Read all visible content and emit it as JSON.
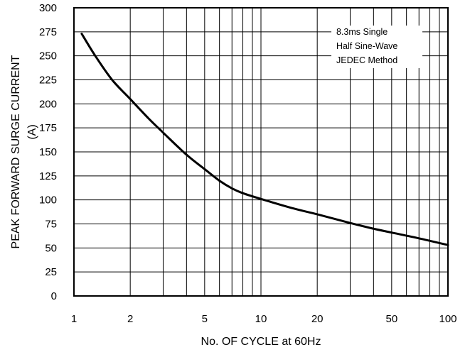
{
  "chart_data": {
    "type": "line",
    "title": "",
    "xlabel": "No. OF CYCLE at 60Hz",
    "ylabel_line1": "PEAK FORWARD SURGE CURRENT",
    "ylabel_line2": "(A)",
    "x_scale": "log",
    "xlim": [
      1,
      100
    ],
    "ylim": [
      0,
      300
    ],
    "grid": true,
    "x_ticks": [
      1,
      2,
      5,
      10,
      20,
      50,
      100
    ],
    "x_tick_labels": [
      "1",
      "2",
      "5",
      "10",
      "20",
      "50",
      "100"
    ],
    "y_ticks": [
      0,
      25,
      50,
      75,
      100,
      125,
      150,
      175,
      200,
      225,
      250,
      275,
      300
    ],
    "y_tick_labels": [
      "0",
      "25",
      "50",
      "75",
      "100",
      "125",
      "150",
      "175",
      "200",
      "225",
      "250",
      "275",
      "300"
    ],
    "series": [
      {
        "x": [
          1.1,
          1.3,
          1.6,
          2,
          2.5,
          3,
          4,
          5,
          6,
          7,
          8,
          10,
          15,
          20,
          30,
          40,
          50,
          70,
          100
        ],
        "y": [
          273,
          250,
          225,
          205,
          185,
          170,
          147,
          132,
          120,
          112,
          107,
          101,
          91,
          85,
          76,
          70,
          66,
          60,
          53
        ],
        "color": "#000000"
      }
    ],
    "annotation": [
      "8.3ms Single",
      "Half Sine-Wave",
      "JEDEC Method"
    ]
  }
}
